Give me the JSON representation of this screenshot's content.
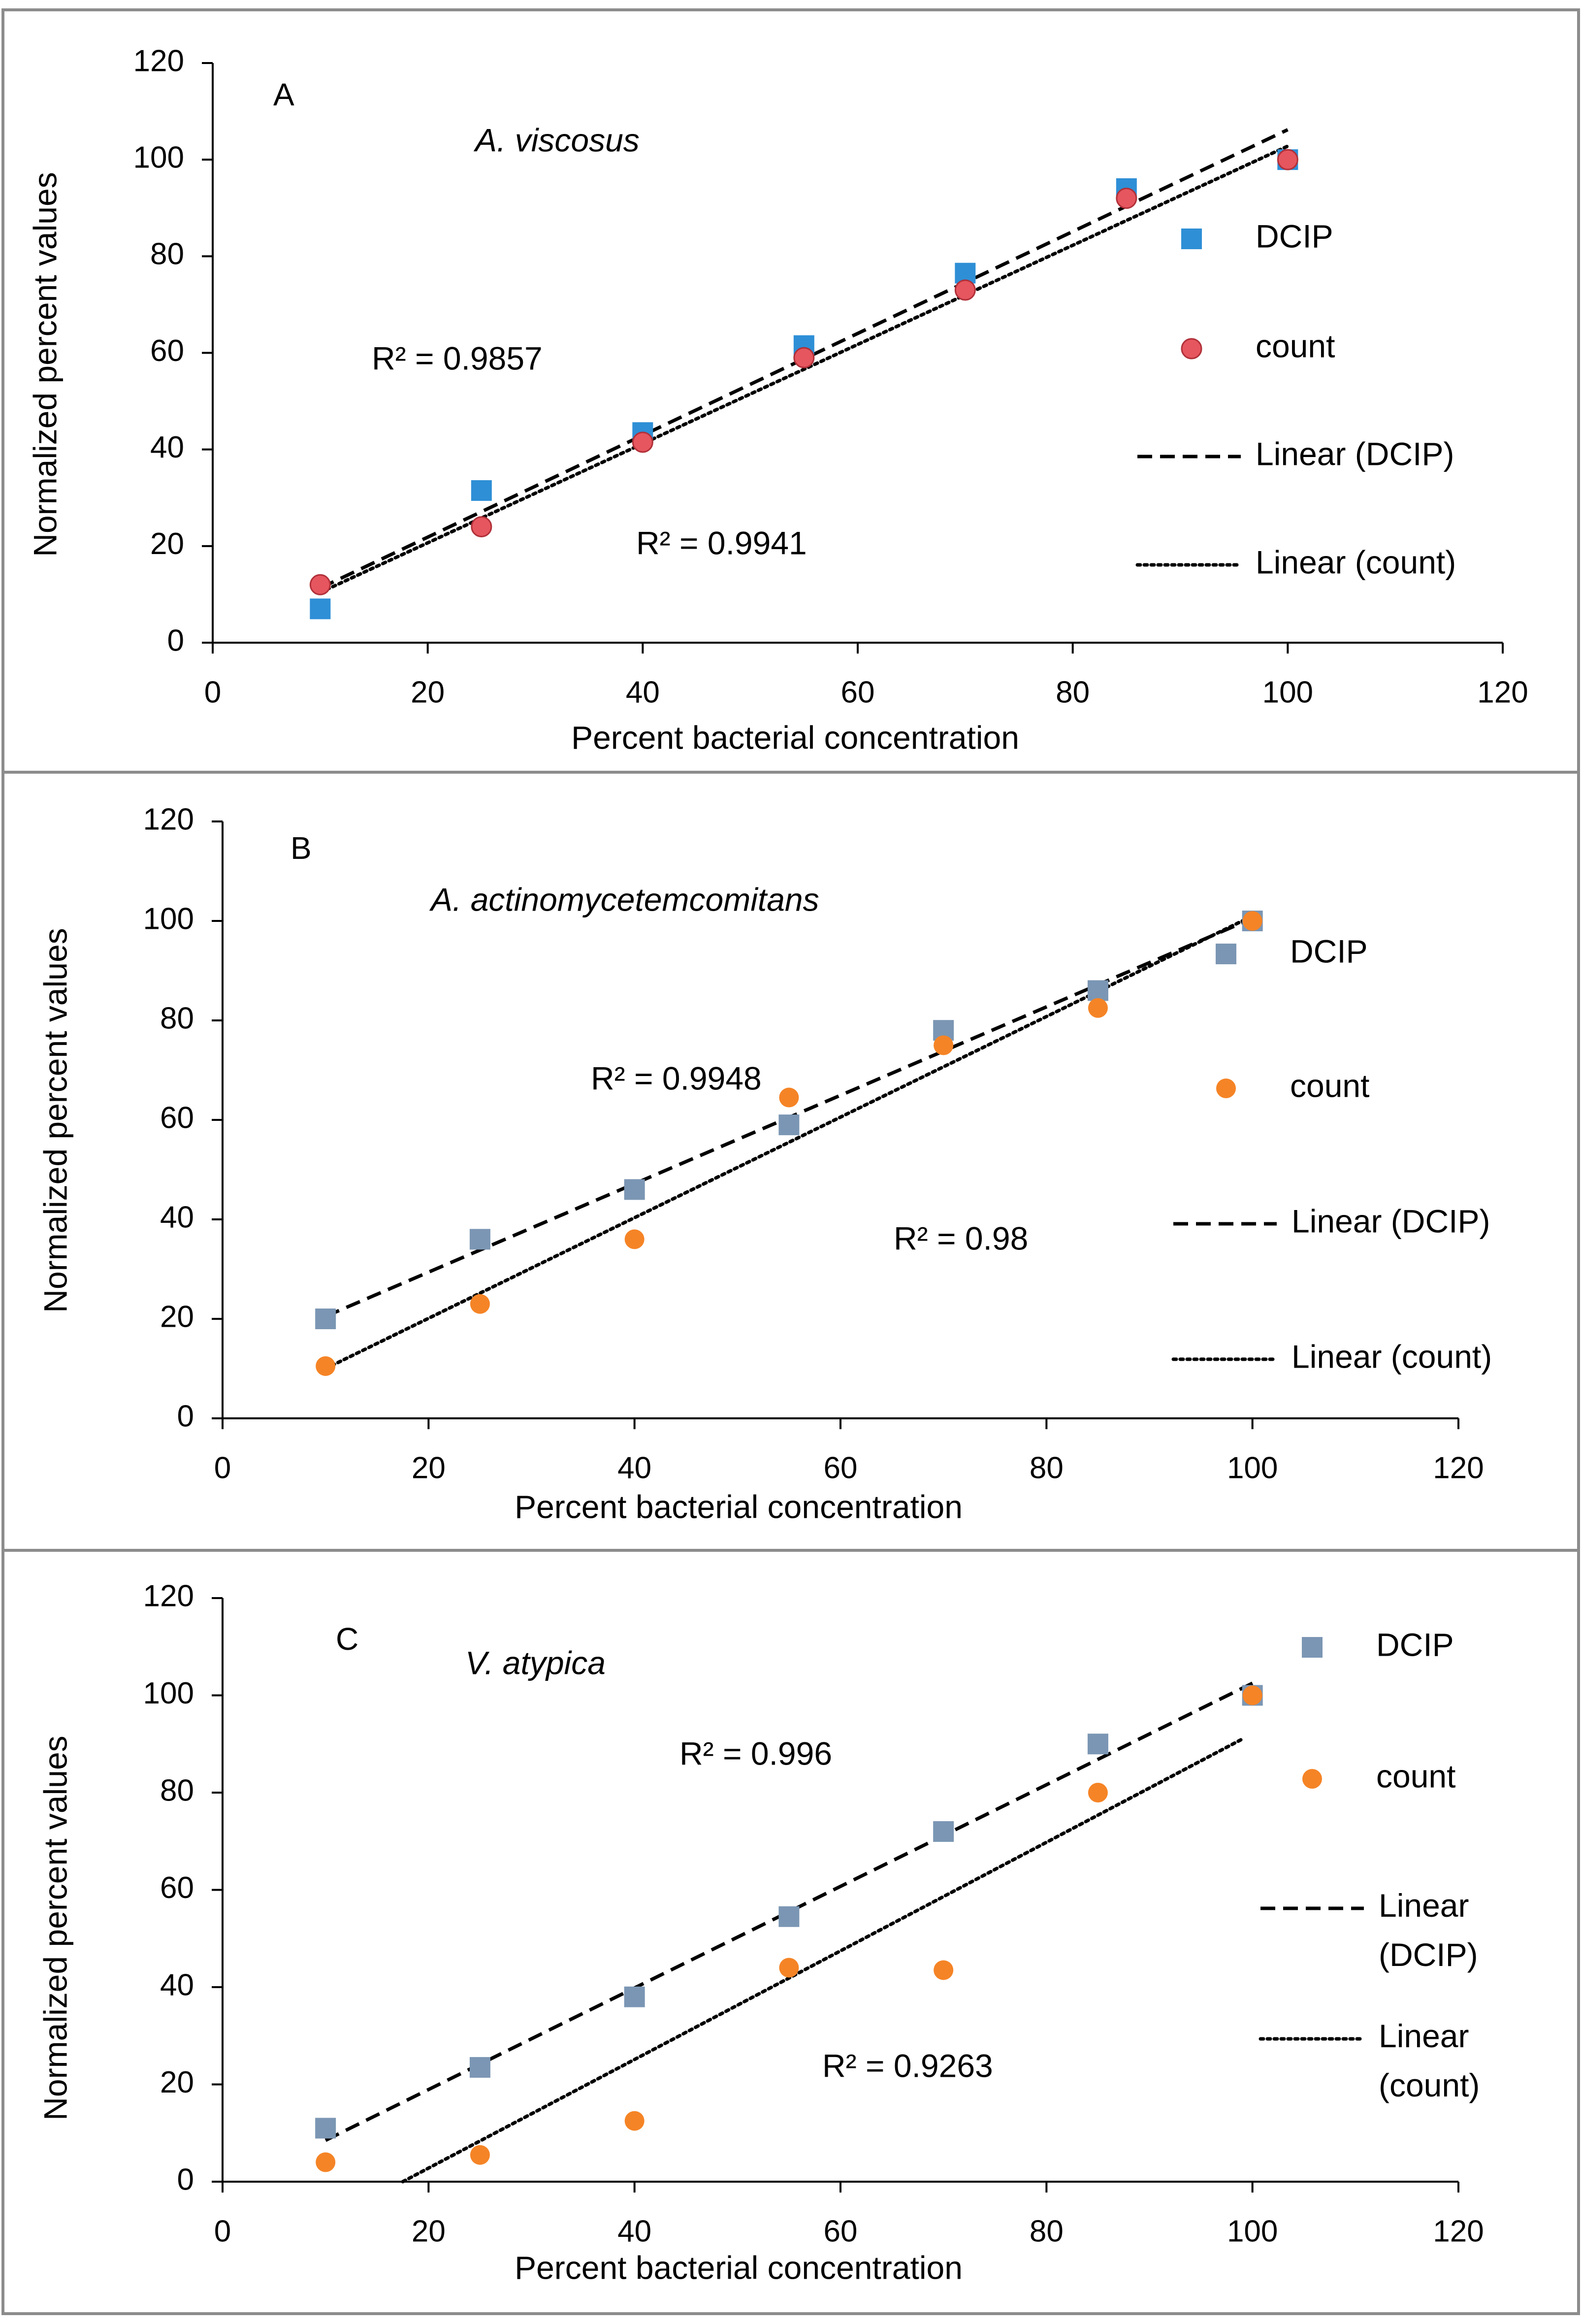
{
  "figure_title": "Normalized percent values vs percent bacterial concentration",
  "colors": {
    "panel_border": "#8c8c8c",
    "axis": "#000000",
    "dcip_blue": "#2e8fd6",
    "dcip_grey": "#7b96b4",
    "count_red": "#e6565f",
    "count_orange": "#f58426"
  },
  "chart_data": [
    {
      "type": "scatter",
      "panel_label": "A",
      "organism": "A. viscosus",
      "xlabel": "Percent  bacterial  concentration",
      "ylabel": "Normalized  percent  values",
      "xlim": [
        0,
        120
      ],
      "ylim": [
        0,
        120
      ],
      "x_ticks": [
        "0",
        "20",
        "40",
        "60",
        "80",
        "100",
        "120"
      ],
      "y_ticks": [
        "0",
        "20",
        "40",
        "60",
        "80",
        "100",
        "120"
      ],
      "grid": false,
      "series": [
        {
          "name": "DCIP",
          "marker": "square",
          "color": "#2e8fd6",
          "x": [
            10,
            25,
            40,
            55,
            70,
            85,
            100
          ],
          "y": [
            7,
            31.5,
            43.5,
            61.5,
            76.5,
            94,
            100
          ]
        },
        {
          "name": "count",
          "marker": "circle",
          "color": "#e6565f",
          "x": [
            10,
            25,
            40,
            55,
            70,
            85,
            100
          ],
          "y": [
            12,
            24,
            41.5,
            59,
            73,
            92,
            100
          ]
        }
      ],
      "trendlines": [
        {
          "name": "Linear (DCIP)",
          "style": "dashed",
          "x": [
            10,
            100
          ],
          "y": [
            11.3,
            106.2
          ]
        },
        {
          "name": "Linear (count)",
          "style": "dotted",
          "x": [
            10,
            100
          ],
          "y": [
            10.4,
            102.8
          ]
        }
      ],
      "legend": [
        "DCIP",
        "count",
        "Linear (DCIP)",
        "Linear (count)"
      ],
      "legend_wrap": [
        false,
        false,
        false,
        false
      ],
      "annotations": [
        "R² = 0.9857",
        "R² = 0.9941"
      ]
    },
    {
      "type": "scatter",
      "panel_label": "B",
      "organism": "A. actinomycetemcomitans",
      "xlabel": "Percent bacterial concentration",
      "ylabel": "Normalized percent values",
      "xlim": [
        0,
        120
      ],
      "ylim": [
        0,
        120
      ],
      "x_ticks": [
        "0",
        "20",
        "40",
        "60",
        "80",
        "100",
        "120"
      ],
      "y_ticks": [
        "0",
        "20",
        "40",
        "60",
        "80",
        "100",
        "120"
      ],
      "grid": false,
      "series": [
        {
          "name": "DCIP",
          "marker": "square",
          "color": "#7b96b4",
          "x": [
            10,
            25,
            40,
            55,
            70,
            85,
            100
          ],
          "y": [
            20,
            36,
            46,
            59,
            78,
            86,
            100
          ]
        },
        {
          "name": "count",
          "marker": "circle",
          "color": "#f58426",
          "x": [
            10,
            25,
            40,
            55,
            70,
            85,
            100
          ],
          "y": [
            10.5,
            23,
            36,
            64.5,
            75,
            82.5,
            100
          ]
        }
      ],
      "trendlines": [
        {
          "name": "Linear (DCIP)",
          "style": "dashed",
          "x": [
            10,
            100
          ],
          "y": [
            20.5,
            100.5
          ]
        },
        {
          "name": "Linear (count)",
          "style": "dotted",
          "x": [
            10,
            100
          ],
          "y": [
            10,
            101
          ]
        }
      ],
      "legend": [
        "DCIP",
        "count",
        "Linear (DCIP)",
        "Linear (count)"
      ],
      "legend_wrap": [
        false,
        false,
        false,
        false
      ],
      "annotations": [
        "R² = 0.9948",
        "R² = 0.98"
      ]
    },
    {
      "type": "scatter",
      "panel_label": "C",
      "organism": "V. atypica",
      "xlabel": "Percent bacterial concentration",
      "ylabel": "Normalized percent values",
      "xlim": [
        0,
        120
      ],
      "ylim": [
        0,
        120
      ],
      "x_ticks": [
        "0",
        "20",
        "40",
        "60",
        "80",
        "100",
        "120"
      ],
      "y_ticks": [
        "0",
        "20",
        "40",
        "60",
        "80",
        "100",
        "120"
      ],
      "grid": false,
      "series": [
        {
          "name": "DCIP",
          "marker": "square",
          "color": "#7b96b4",
          "x": [
            10,
            25,
            40,
            55,
            70,
            85,
            100
          ],
          "y": [
            11,
            23.5,
            38,
            54.5,
            72,
            90,
            100
          ]
        },
        {
          "name": "count",
          "marker": "circle",
          "color": "#f58426",
          "x": [
            10,
            25,
            40,
            55,
            70,
            85,
            100
          ],
          "y": [
            4,
            5.5,
            12.5,
            44,
            43.5,
            80,
            100
          ]
        }
      ],
      "trendlines": [
        {
          "name": "Linear (DCIP)",
          "style": "dashed",
          "x": [
            10,
            100
          ],
          "y": [
            8.5,
            102.5
          ]
        },
        {
          "name": "Linear (count)",
          "style": "dotted",
          "x": [
            17.5,
            99
          ],
          "y": [
            0,
            91
          ]
        }
      ],
      "legend": [
        "DCIP",
        "count",
        "Linear (DCIP)",
        "Linear (count)"
      ],
      "legend_wrap": [
        false,
        false,
        true,
        true
      ],
      "annotations": [
        "R² = 0.996",
        "R² = 0.9263"
      ]
    }
  ]
}
